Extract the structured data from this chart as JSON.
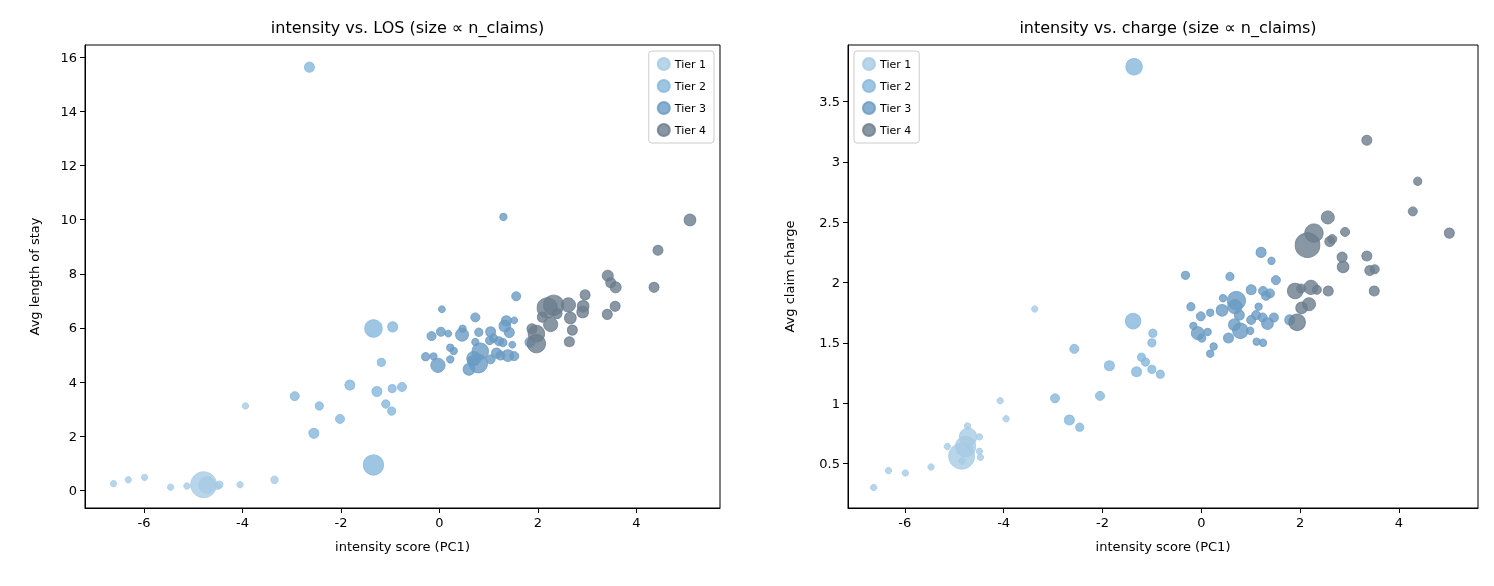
{
  "chart_data": [
    {
      "type": "bubble",
      "title": "intensity vs. LOS (size ∝ n_claims)",
      "xlabel": "intensity score (PC1)",
      "ylabel": "Avg length of stay",
      "xlim": [
        -7.2,
        5.7
      ],
      "xticks": [
        -6,
        -4,
        -2,
        0,
        2,
        4
      ],
      "ylim": [
        -0.65,
        16.45
      ],
      "yticks": [
        0,
        2,
        4,
        6,
        8,
        10,
        12,
        14,
        16
      ],
      "legend": "top right",
      "marker": "circle",
      "series": [
        {
          "name": "Tier 1",
          "color": "#a6cbe3",
          "x": [
            -6.62,
            -6.32,
            -5.99,
            -5.46,
            -5.13,
            -4.79,
            -4.72,
            -4.47,
            -4.5,
            -4.05,
            -3.35,
            -3.94
          ],
          "values": [
            0.25,
            0.39,
            0.48,
            0.12,
            0.16,
            0.21,
            0.2,
            0.21,
            0.15,
            0.21,
            0.39,
            3.12
          ],
          "sizes": [
            0.06,
            0.06,
            0.06,
            0.06,
            0.06,
            1,
            0.4,
            0.08,
            0.06,
            0.06,
            0.08,
            0.06
          ]
        },
        {
          "name": "Tier 2",
          "color": "#86b8dc",
          "x": [
            -2.64,
            -1.34,
            -0.95,
            -1.18,
            -1.82,
            -1.27,
            -0.96,
            -0.76,
            -1.09,
            -0.97,
            -2.94,
            -2.44,
            -2.02,
            -2.55,
            -1.34
          ],
          "values": [
            15.63,
            5.98,
            6.04,
            4.73,
            3.89,
            3.65,
            3.76,
            3.82,
            3.19,
            2.93,
            3.48,
            3.12,
            2.64,
            2.11,
            0.94
          ],
          "sizes": [
            0.15,
            0.45,
            0.15,
            0.1,
            0.15,
            0.15,
            0.1,
            0.12,
            0.1,
            0.1,
            0.12,
            0.1,
            0.12,
            0.15,
            0.6
          ]
        },
        {
          "name": "Tier 3",
          "color": "#6a9bc3",
          "x": [
            1.3,
            1.56,
            0.05,
            0.73,
            1.36,
            1.52,
            1.33,
            0.47,
            0.03,
            0.8,
            0.18,
            1.42,
            1.04,
            0.46,
            -0.16,
            1.84,
            1.1,
            1.02,
            1.21,
            1.29,
            1.48,
            0.73,
            0.22,
            0.29,
            0.83,
            -0.28,
            -0.12,
            -0.03,
            0.22,
            0.7,
            0.79,
            0.6,
            1.04,
            1.16,
            1.24,
            1.39,
            1.52,
            0.67
          ],
          "values": [
            10.1,
            7.17,
            6.69,
            6.39,
            6.26,
            6.28,
            6.07,
            5.97,
            5.86,
            5.84,
            5.79,
            5.83,
            5.86,
            5.75,
            5.7,
            5.47,
            5.62,
            5.54,
            5.51,
            5.46,
            5.38,
            5.48,
            5.27,
            5.15,
            5.14,
            4.94,
            4.95,
            4.62,
            4.84,
            4.87,
            4.68,
            4.47,
            4.84,
            5.07,
            4.98,
            4.98,
            4.96,
            4.78
          ],
          "sizes": [
            0.08,
            0.12,
            0.07,
            0.12,
            0.15,
            0.07,
            0.2,
            0.08,
            0.12,
            0.1,
            0.07,
            0.15,
            0.15,
            0.25,
            0.12,
            0.15,
            0.1,
            0.1,
            0.12,
            0.1,
            0.07,
            0.08,
            0.08,
            0.08,
            0.4,
            0.1,
            0.08,
            0.3,
            0.08,
            0.3,
            0.5,
            0.2,
            0.12,
            0.15,
            0.12,
            0.2,
            0.12,
            0.15
          ]
        },
        {
          "name": "Tier 4",
          "color": "#6b7d8d",
          "x": [
            5.09,
            4.44,
            3.42,
            3.48,
            3.58,
            4.36,
            2.96,
            2.92,
            3.57,
            2.62,
            2.32,
            2.19,
            2.91,
            2.39,
            3.41,
            2.66,
            2.09,
            2.26,
            2.7,
            1.88,
            1.97,
            1.97,
            2.64
          ],
          "values": [
            9.99,
            8.87,
            7.93,
            7.67,
            7.5,
            7.5,
            7.22,
            6.8,
            6.8,
            6.85,
            6.84,
            6.74,
            6.59,
            6.53,
            6.5,
            6.37,
            6.4,
            6.13,
            5.92,
            5.97,
            5.79,
            5.42,
            5.49
          ],
          "sizes": [
            0.2,
            0.15,
            0.18,
            0.15,
            0.18,
            0.15,
            0.15,
            0.2,
            0.15,
            0.3,
            0.6,
            0.6,
            0.2,
            0.15,
            0.15,
            0.2,
            0.15,
            0.3,
            0.15,
            0.15,
            0.4,
            0.5,
            0.15
          ]
        }
      ]
    },
    {
      "type": "bubble",
      "title": "intensity vs. charge (size ∝ n_claims)",
      "xlabel": "intensity score (PC1)",
      "ylabel": "Avg claim charge",
      "xlim": [
        -7.15,
        5.6
      ],
      "xticks": [
        -6,
        -4,
        -2,
        0,
        2,
        4
      ],
      "ylim": [
        0.13,
        3.97
      ],
      "yticks": [
        0.5,
        1.0,
        1.5,
        2.0,
        2.5,
        3.0,
        3.5
      ],
      "legend": "top left",
      "marker": "circle",
      "series": [
        {
          "name": "Tier 1",
          "color": "#a6cbe3",
          "x": [
            -6.63,
            -6.33,
            -5.99,
            -5.47,
            -5.14,
            -4.73,
            -4.72,
            -4.77,
            -4.85,
            -4.84,
            -4.69,
            -4.49,
            -4.49,
            -4.47,
            -4.07,
            -3.95,
            -3.37
          ],
          "values": [
            0.3,
            0.44,
            0.42,
            0.47,
            0.64,
            0.81,
            0.72,
            0.64,
            0.56,
            0.52,
            0.63,
            0.72,
            0.6,
            0.55,
            1.02,
            0.87,
            1.78
          ],
          "sizes": [
            0.06,
            0.06,
            0.06,
            0.06,
            0.06,
            0.06,
            0.45,
            0.6,
            1,
            0.06,
            0.06,
            0.06,
            0.06,
            0.06,
            0.06,
            0.06,
            0.06
          ]
        },
        {
          "name": "Tier 2",
          "color": "#86b8dc",
          "x": [
            -1.36,
            -1.38,
            -0.98,
            -1.0,
            -1.21,
            -1.13,
            -1.0,
            -1.31,
            -0.83,
            -1.86,
            -2.57,
            -2.96,
            -2.05,
            -2.67,
            -2.46
          ],
          "values": [
            3.79,
            1.68,
            1.58,
            1.5,
            1.38,
            1.34,
            1.28,
            1.26,
            1.24,
            1.31,
            1.45,
            1.04,
            1.06,
            0.86,
            0.8
          ],
          "sizes": [
            0.4,
            0.35,
            0.1,
            0.1,
            0.1,
            0.1,
            0.1,
            0.15,
            0.1,
            0.15,
            0.12,
            0.12,
            0.12,
            0.15,
            0.1
          ]
        },
        {
          "name": "Tier 3",
          "color": "#6a9bc3",
          "x": [
            1.21,
            1.42,
            -0.32,
            0.58,
            1.51,
            1.01,
            1.25,
            1.39,
            1.31,
            0.71,
            0.44,
            -0.21,
            0.68,
            0.42,
            1.16,
            0.18,
            -0.01,
            -0.16,
            -0.07,
            0.01,
            0.13,
            0.77,
            0.67,
            0.79,
            1.01,
            1.11,
            1.24,
            1.34,
            1.47,
            0.99,
            0.55,
            0.25,
            0.18,
            1.12,
            1.25,
            1.79
          ],
          "values": [
            2.25,
            2.18,
            2.06,
            2.05,
            2.02,
            1.94,
            1.93,
            1.91,
            1.89,
            1.85,
            1.87,
            1.8,
            1.8,
            1.77,
            1.8,
            1.75,
            1.72,
            1.64,
            1.58,
            1.54,
            1.59,
            1.73,
            1.65,
            1.6,
            1.69,
            1.73,
            1.71,
            1.66,
            1.71,
            1.6,
            1.54,
            1.47,
            1.41,
            1.51,
            1.5,
            1.69
          ],
          "sizes": [
            0.15,
            0.08,
            0.1,
            0.1,
            0.12,
            0.15,
            0.12,
            0.12,
            0.12,
            0.5,
            0.08,
            0.1,
            0.3,
            0.2,
            0.08,
            0.08,
            0.12,
            0.08,
            0.25,
            0.1,
            0.08,
            0.15,
            0.2,
            0.35,
            0.12,
            0.12,
            0.12,
            0.2,
            0.12,
            0.08,
            0.15,
            0.08,
            0.08,
            0.08,
            0.08,
            0.15
          ]
        },
        {
          "name": "Tier 4",
          "color": "#6b7d8d",
          "x": [
            3.35,
            4.38,
            4.28,
            5.02,
            2.56,
            2.91,
            2.28,
            2.15,
            2.65,
            2.6,
            2.85,
            2.87,
            3.35,
            3.41,
            3.51,
            3.5,
            2.22,
            2.02,
            1.9,
            2.34,
            2.57,
            2.18,
            2.03,
            1.94
          ],
          "values": [
            3.18,
            2.84,
            2.59,
            2.41,
            2.54,
            2.42,
            2.41,
            2.31,
            2.36,
            2.34,
            2.21,
            2.13,
            2.22,
            2.1,
            2.11,
            1.93,
            1.96,
            1.95,
            1.93,
            1.94,
            1.93,
            1.82,
            1.79,
            1.67
          ],
          "sizes": [
            0.15,
            0.1,
            0.12,
            0.15,
            0.25,
            0.12,
            0.5,
            0.9,
            0.12,
            0.15,
            0.15,
            0.2,
            0.15,
            0.15,
            0.12,
            0.15,
            0.3,
            0.12,
            0.35,
            0.12,
            0.15,
            0.25,
            0.2,
            0.4
          ]
        }
      ]
    }
  ]
}
